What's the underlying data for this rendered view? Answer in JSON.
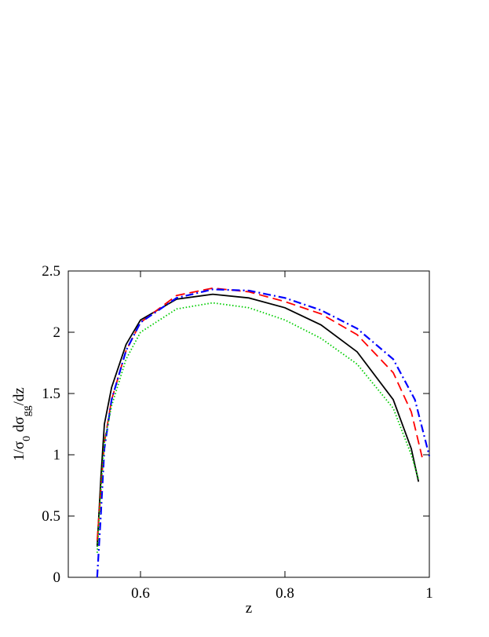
{
  "chart_data": {
    "type": "line",
    "xlabel": "z",
    "ylabel_parts": [
      "1/σ",
      "0",
      " dσ",
      "gg",
      "/dz"
    ],
    "xlim": [
      0.5,
      1
    ],
    "ylim": [
      0,
      2.5
    ],
    "xticks": [
      0.6,
      0.8,
      1
    ],
    "yticks": [
      0,
      0.5,
      1,
      1.5,
      2,
      2.5
    ],
    "series": [
      {
        "color": "#000000",
        "dash": "solid",
        "x": [
          0.54,
          0.545,
          0.55,
          0.56,
          0.58,
          0.6,
          0.65,
          0.7,
          0.75,
          0.8,
          0.85,
          0.9,
          0.95,
          0.975,
          0.985
        ],
        "values": [
          0.25,
          0.8,
          1.25,
          1.55,
          1.9,
          2.1,
          2.27,
          2.31,
          2.28,
          2.2,
          2.06,
          1.84,
          1.45,
          1.05,
          0.78
        ]
      },
      {
        "color": "#ff0000",
        "dash": "dashed",
        "x": [
          0.54,
          0.545,
          0.55,
          0.56,
          0.58,
          0.6,
          0.65,
          0.7,
          0.75,
          0.8,
          0.85,
          0.9,
          0.95,
          0.975,
          0.99
        ],
        "values": [
          0.3,
          0.7,
          1.1,
          1.45,
          1.85,
          2.08,
          2.3,
          2.36,
          2.33,
          2.25,
          2.15,
          1.98,
          1.67,
          1.35,
          0.98
        ]
      },
      {
        "color": "#0000ff",
        "dash": "dashdot",
        "x": [
          0.54,
          0.545,
          0.55,
          0.56,
          0.58,
          0.6,
          0.65,
          0.7,
          0.75,
          0.8,
          0.85,
          0.9,
          0.95,
          0.98,
          1.0
        ],
        "values": [
          0,
          0.5,
          1.05,
          1.45,
          1.85,
          2.08,
          2.28,
          2.35,
          2.34,
          2.28,
          2.18,
          2.03,
          1.78,
          1.45,
          0.99
        ]
      },
      {
        "color": "#00cc00",
        "dash": "dotted",
        "x": [
          0.54,
          0.545,
          0.55,
          0.56,
          0.58,
          0.6,
          0.65,
          0.7,
          0.75,
          0.8,
          0.85,
          0.9,
          0.95,
          0.975,
          0.985
        ],
        "values": [
          0.2,
          0.7,
          1.1,
          1.4,
          1.78,
          2.0,
          2.19,
          2.24,
          2.2,
          2.1,
          1.95,
          1.74,
          1.38,
          1.0,
          0.8
        ]
      }
    ]
  }
}
